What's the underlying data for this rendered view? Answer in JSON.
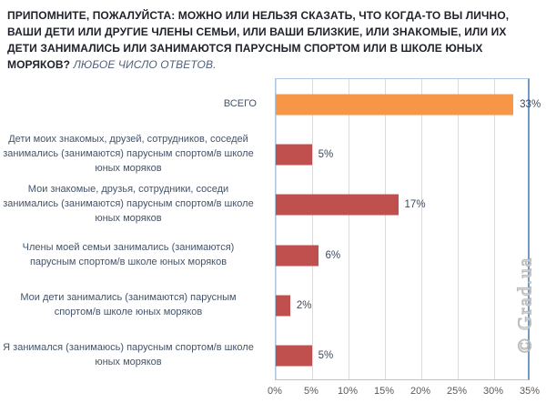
{
  "title": {
    "main": "ПРИПОМНИТЕ, ПОЖАЛУЙСТА: МОЖНО ИЛИ НЕЛЬЗЯ СКАЗАТЬ, ЧТО КОГДА-ТО ВЫ ЛИЧНО, ВАШИ ДЕТИ ИЛИ ДРУГИЕ ЧЛЕНЫ СЕМЬИ,  ИЛИ ВАШИ БЛИЗКИЕ, ИЛИ ЗНАКОМЫЕ, ИЛИ ИХ ДЕТИ ЗАНИМАЛИСЬ ИЛИ ЗАНИМАЮТСЯ ПАРУСНЫМ СПОРТОМ ИЛИ В ШКОЛЕ ЮНЫХ МОРЯКОВ?",
    "note": "ЛЮБОЕ ЧИСЛО ОТВЕТОВ."
  },
  "watermark": "© Grad.ua",
  "chart_data": {
    "type": "bar",
    "orientation": "horizontal",
    "title": "",
    "categories": [
      "ВСЕГО",
      "Дети моих знакомых, друзей, сотрудников, соседей занимались (занимаются) парусным спортом/в школе юных моряков",
      "Мои знакомые, друзья, сотрудники, соседи занимались (занимаются) парусным спортом/в школе юных моряков",
      "Члены моей семьи занимались (занимаются) парусным спортом/в школе юных моряков",
      "Мои дети занимались (занимаются) парусным спортом/в школе юных моряков",
      "Я занимался (занимаюсь) парусным спортом/в школе юных моряков"
    ],
    "values": [
      33,
      5,
      17,
      6,
      2,
      5
    ],
    "value_labels": [
      "33%",
      "5%",
      "17%",
      "6%",
      "2%",
      "5%"
    ],
    "bar_colors": [
      "#F79646",
      "#C0504D",
      "#C0504D",
      "#C0504D",
      "#C0504D",
      "#C0504D"
    ],
    "xlim": [
      0,
      35
    ],
    "x_tick_step": 5,
    "x_ticks": [
      "0%",
      "5%",
      "10%",
      "15%",
      "20%",
      "25%",
      "30%",
      "35%"
    ],
    "grid": true,
    "legend": false,
    "colors": {
      "total_bar": "#F79646",
      "series_bar": "#C0504D",
      "gridline": "#DBDBDB",
      "plot_border": "#AFC7DE",
      "axis_right_line": "#7199C1",
      "category_text": "#44546A",
      "value_text": "#3D4A5C",
      "tick_text": "#595959",
      "title_text": "#20232B",
      "note_text": "#50607A"
    }
  }
}
